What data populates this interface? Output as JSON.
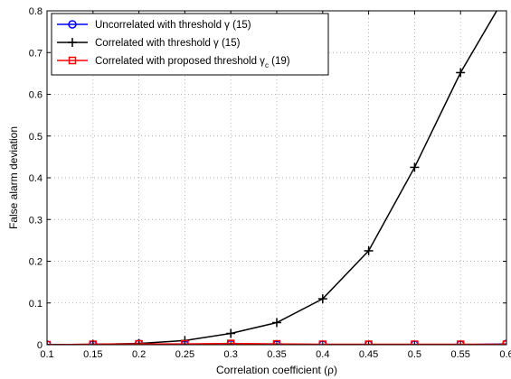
{
  "chart_data": {
    "type": "line",
    "title": "",
    "xlabel": "Correlation coefficient (ρ)",
    "ylabel": "False alarm deviation",
    "xlim": [
      0.1,
      0.6
    ],
    "ylim": [
      0,
      0.8
    ],
    "xticks": [
      "0.1",
      "0.15",
      "0.2",
      "0.25",
      "0.3",
      "0.35",
      "0.4",
      "0.45",
      "0.5",
      "0.55",
      "0.6"
    ],
    "yticks": [
      "0",
      "0.1",
      "0.2",
      "0.3",
      "0.4",
      "0.5",
      "0.6",
      "0.7",
      "0.8"
    ],
    "grid": true,
    "legend_position": "top-left",
    "x": [
      0.1,
      0.15,
      0.2,
      0.25,
      0.3,
      0.35,
      0.4,
      0.45,
      0.5,
      0.55,
      0.6
    ],
    "series": [
      {
        "name": "Uncorrelated with threshold γ (15)",
        "name_main": "Uncorrelated with threshold γ (15)",
        "name_sub": "",
        "name_tail": "",
        "color": "#0000ff",
        "marker": "circle",
        "values": [
          0.0,
          0.0,
          0.002,
          0.0,
          0.001,
          0.0,
          0.0,
          0.0,
          0.0,
          0.0,
          0.002
        ]
      },
      {
        "name": "Correlated with threshold γ (15)",
        "name_main": "Correlated with threshold γ (15)",
        "name_sub": "",
        "name_tail": "",
        "color": "#000000",
        "marker": "plus",
        "values": [
          0.0,
          0.001,
          0.003,
          0.01,
          0.027,
          0.053,
          0.11,
          0.225,
          0.425,
          0.652,
          0.84
        ]
      },
      {
        "name": "Correlated with proposed threshold γc (19)",
        "name_main": "Correlated with proposed threshold γ",
        "name_sub": "c",
        "name_tail": " (19)",
        "color": "#ff0000",
        "marker": "square",
        "values": [
          0.0,
          0.001,
          0.002,
          0.002,
          0.003,
          0.002,
          0.001,
          0.001,
          0.001,
          0.001,
          0.001
        ]
      }
    ]
  }
}
